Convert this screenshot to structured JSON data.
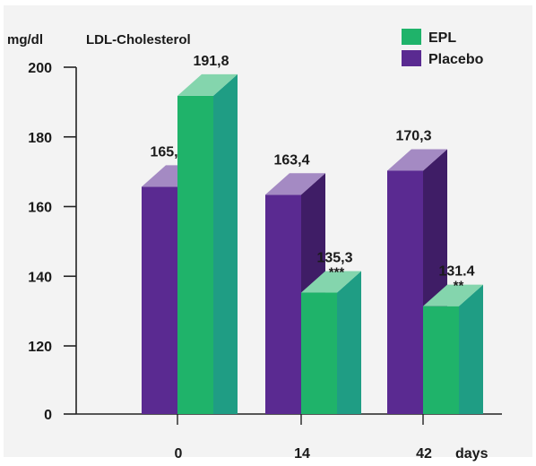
{
  "chart_data": {
    "type": "bar",
    "title": "LDL-Cholesterol",
    "ylabel": "mg/dl",
    "xlabel": "days",
    "categories": [
      "0",
      "14",
      "42"
    ],
    "ylim": [
      0,
      200
    ],
    "y_axis_break": [
      0,
      120
    ],
    "yticks": [
      "0",
      "120",
      "140",
      "160",
      "180",
      "200"
    ],
    "legend_position": "top-right",
    "series": [
      {
        "name": "Placebo",
        "color": "#5a2a91",
        "values": [
          165.7,
          163.4,
          170.3
        ],
        "labels": [
          "165,7",
          "163,4",
          "170,3"
        ],
        "annotations": [
          "",
          "",
          ""
        ]
      },
      {
        "name": "EPL",
        "color": "#1fb36a",
        "values": [
          191.8,
          135.3,
          131.4
        ],
        "labels": [
          "191,8",
          "135,3",
          "131.4"
        ],
        "annotations": [
          "",
          "***",
          "**"
        ]
      }
    ]
  }
}
